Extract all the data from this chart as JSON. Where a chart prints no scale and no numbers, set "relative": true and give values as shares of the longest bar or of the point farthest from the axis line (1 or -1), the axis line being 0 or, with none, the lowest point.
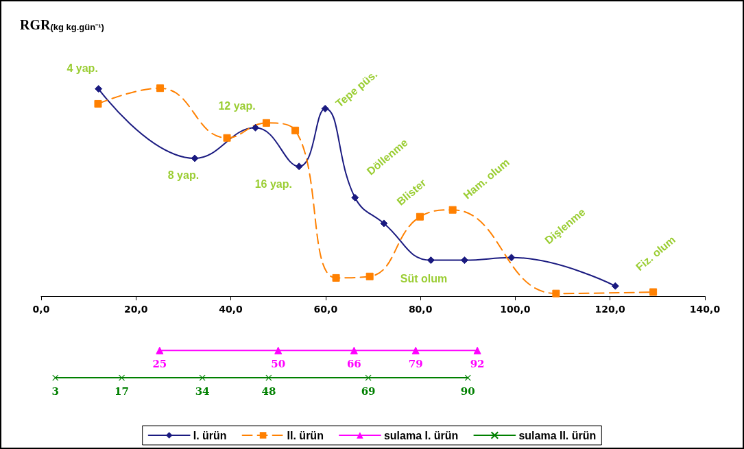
{
  "chart_data": {
    "type": "line",
    "relative": true,
    "ylabel": "RGR$_{(kg kg.gün⁻¹)}$",
    "xlim": [
      0,
      140
    ],
    "xticks": [
      {
        "value": 0,
        "label": "0,0"
      },
      {
        "value": 20,
        "label": "20,0"
      },
      {
        "value": 40,
        "label": "40,0"
      },
      {
        "value": 60,
        "label": "60,0"
      },
      {
        "value": 80,
        "label": "80,0"
      },
      {
        "value": 100,
        "label": "100,0"
      },
      {
        "value": 120,
        "label": "120,0"
      },
      {
        "value": 140,
        "label": "140,0"
      }
    ],
    "legend": "bottom",
    "grid": false,
    "series": [
      {
        "name": "I. ürün",
        "color": "#1a1a80",
        "marker": "diamond",
        "line_style": "solid",
        "x": [
          12.1,
          32.4,
          45.2,
          54.4,
          59.9,
          66.2,
          72.3,
          82.2,
          89.3,
          99.2,
          121.1
        ],
        "values": [
          0.997,
          0.663,
          0.81,
          0.624,
          0.902,
          0.474,
          0.35,
          0.173,
          0.173,
          0.186,
          0.049
        ]
      },
      {
        "name": "II. ürün",
        "color": "#ff8000",
        "marker": "square",
        "line_style": "dashed",
        "x": [
          12.0,
          25.1,
          39.2,
          47.5,
          53.6,
          62.2,
          69.3,
          79.9,
          86.8,
          108.6,
          129.1
        ],
        "values": [
          0.925,
          1.0,
          0.761,
          0.833,
          0.797,
          0.088,
          0.095,
          0.382,
          0.415,
          0.013,
          0.02
        ]
      },
      {
        "name": "sulama I. ürün",
        "color": "#ff00ff",
        "marker": "triangle",
        "line_style": "solid",
        "x": [
          25,
          50,
          66,
          79,
          92
        ],
        "values": [
          -0.261,
          -0.261,
          -0.261,
          -0.261,
          -0.261
        ]
      },
      {
        "name": "sulama II. ürün",
        "color": "#008000",
        "marker": "cross",
        "line_style": "solid",
        "x": [
          3,
          17,
          34,
          48,
          69,
          90
        ],
        "values": [
          -0.392,
          -0.392,
          -0.392,
          -0.392,
          -0.392,
          -0.392
        ]
      }
    ],
    "annotations": [
      "4 yap.",
      "12 yap.",
      "8 yap.",
      "16 yap.",
      "Tepe püs.",
      "Döllenme",
      "Blister",
      "Ham. olum",
      "Süt olum",
      "Dişlenme",
      "Fiz. olum",
      {
        "text": "25",
        "x": 25,
        "y": -0.261
      },
      {
        "text": "50",
        "x": 50,
        "y": -0.261
      },
      {
        "text": "66",
        "x": 66,
        "y": -0.261
      },
      {
        "text": "79",
        "x": 79,
        "y": -0.261
      },
      {
        "text": "92",
        "x": 92,
        "y": -0.261
      },
      {
        "text": "3",
        "x": 3,
        "y": -0.392
      },
      {
        "text": "17",
        "x": 17,
        "y": -0.392
      },
      {
        "text": "34",
        "x": 34,
        "y": -0.392
      },
      {
        "text": "48",
        "x": 48,
        "y": -0.392
      },
      {
        "text": "69",
        "x": 69,
        "y": -0.392
      },
      {
        "text": "90",
        "x": 90,
        "y": -0.392
      }
    ]
  }
}
